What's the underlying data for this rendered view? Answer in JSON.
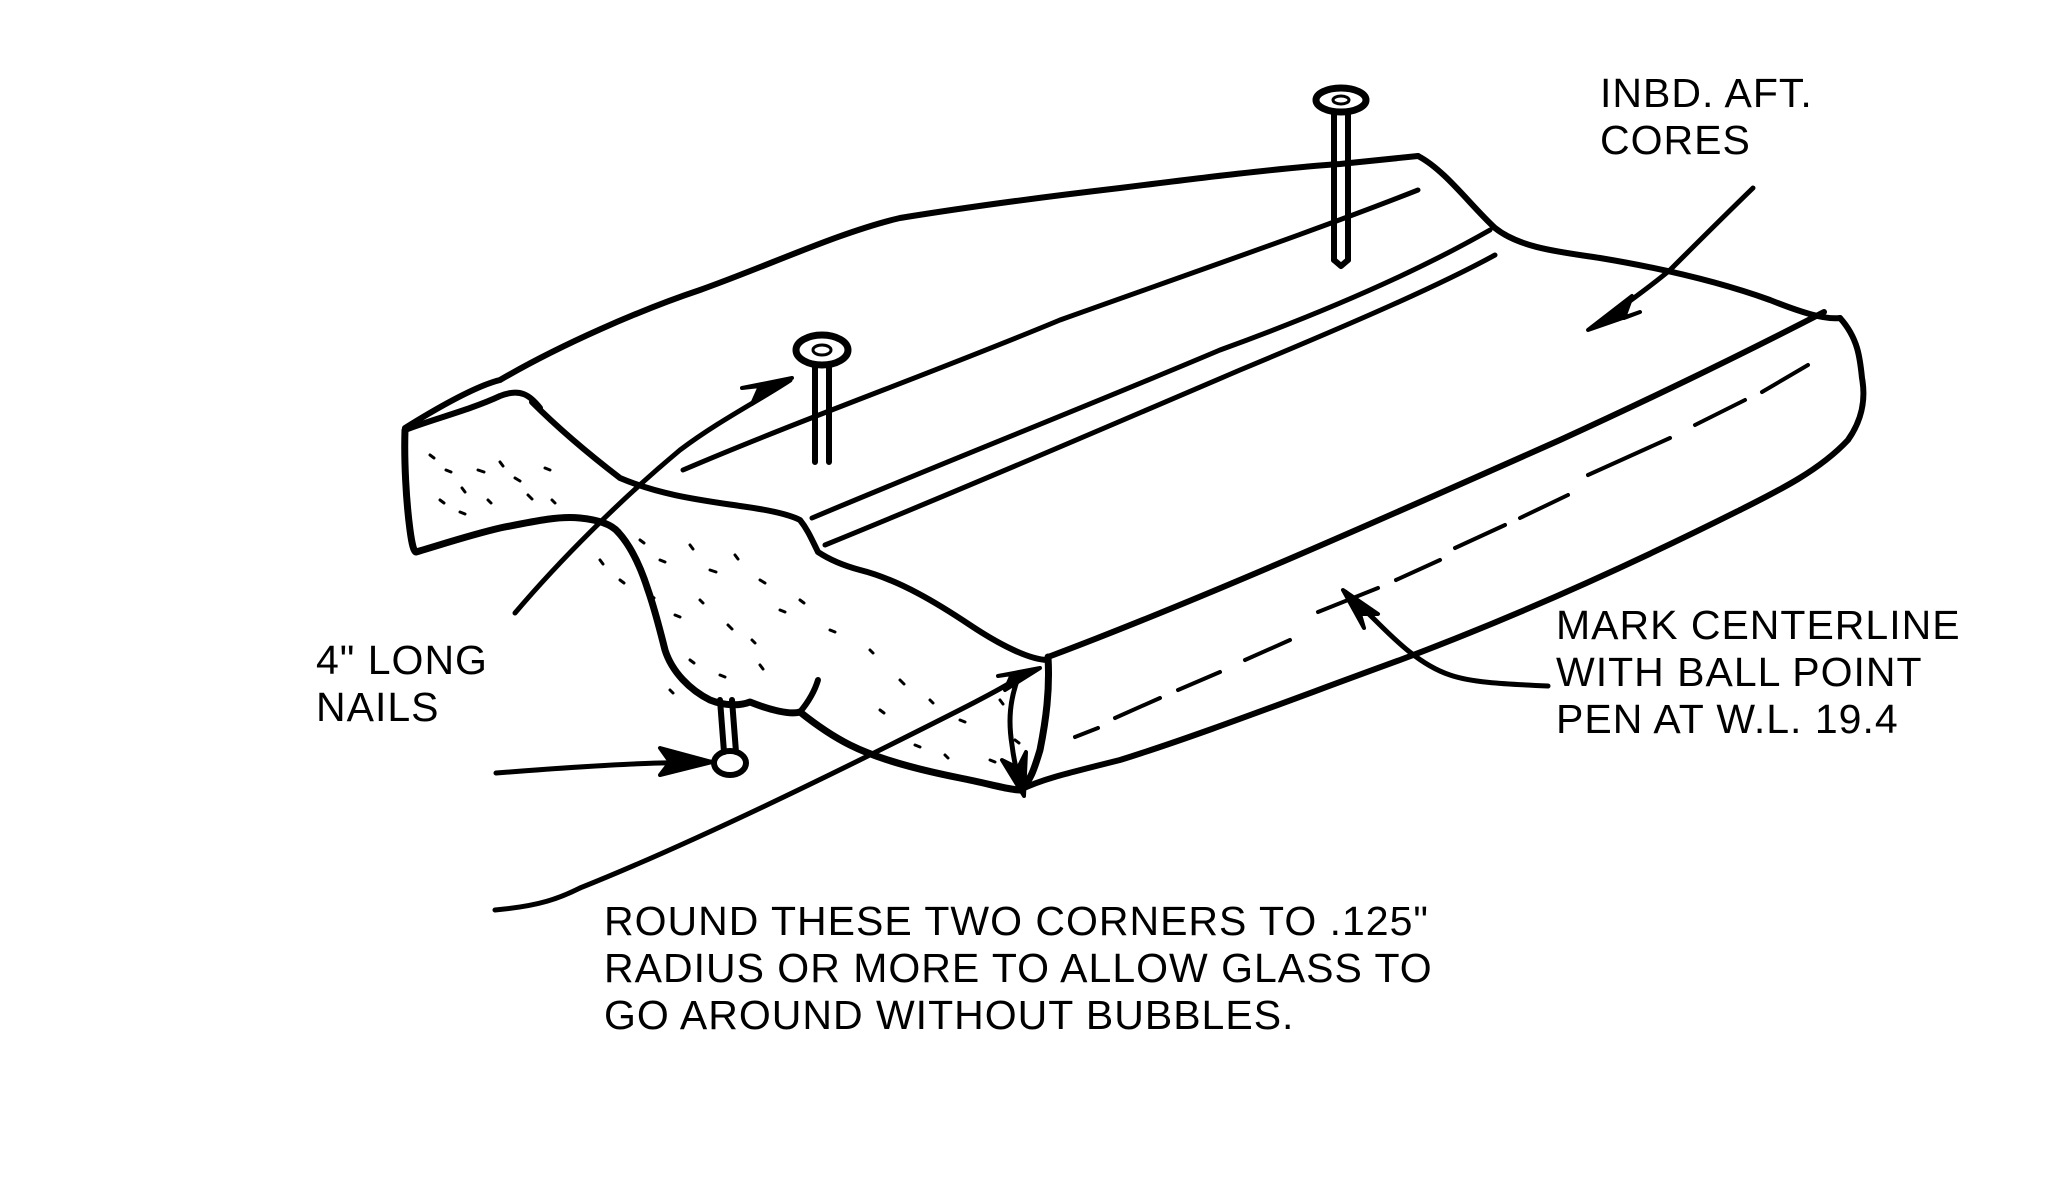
{
  "labels": {
    "inbd": [
      "INBD. AFT.",
      "CORES"
    ],
    "nails": [
      "4\" LONG",
      "NAILS"
    ],
    "mark": [
      "MARK CENTERLINE",
      "WITH BALL POINT",
      "PEN AT W.L. 19.4"
    ],
    "round": [
      "ROUND THESE TWO CORNERS TO .125\"",
      "RADIUS OR MORE TO ALLOW GLASS TO",
      "GO AROUND WITHOUT BUBBLES."
    ]
  },
  "colors": {
    "ink": "#000000",
    "paper": "#ffffff"
  }
}
